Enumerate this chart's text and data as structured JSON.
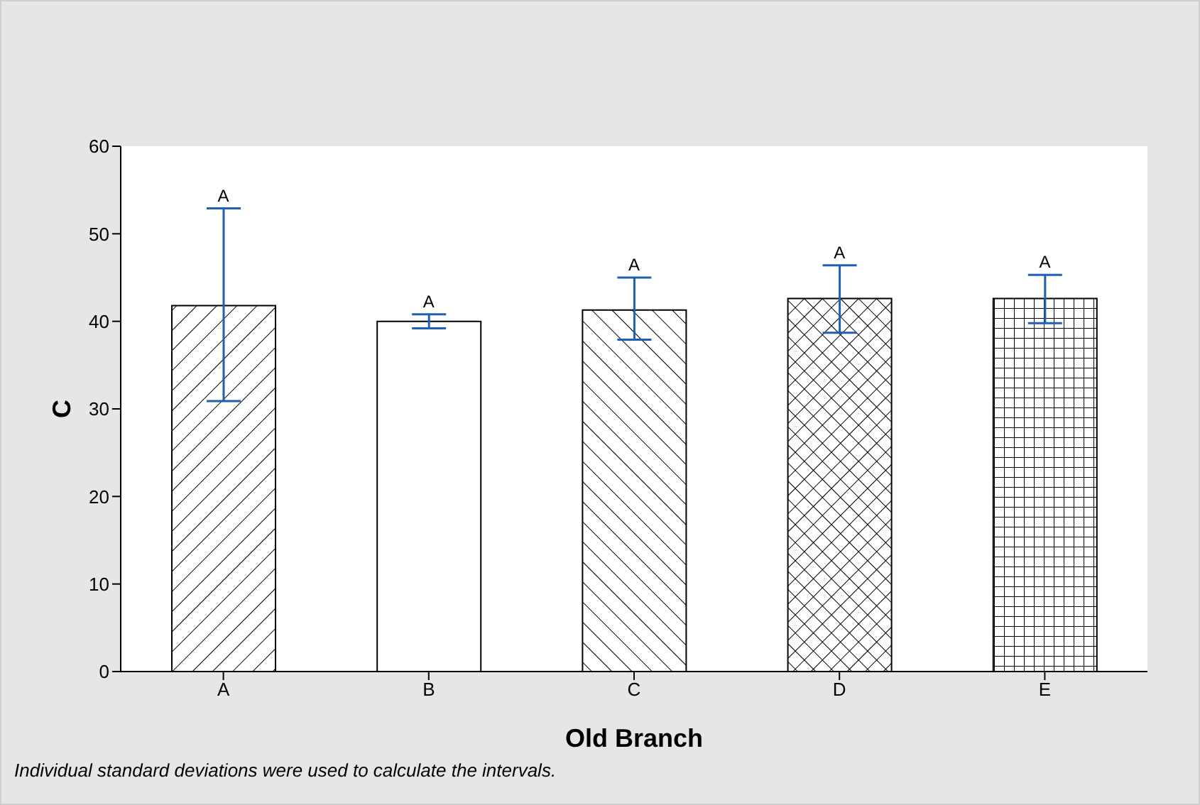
{
  "chart_data": {
    "type": "bar",
    "xlabel": "Old Branch",
    "ylabel": "C",
    "categories": [
      "A",
      "B",
      "C",
      "D",
      "E"
    ],
    "values": [
      41.8,
      40.0,
      41.3,
      42.6,
      42.6
    ],
    "colors": [
      "#000000",
      "#ffffff",
      "#000000",
      "#000000",
      "#000000"
    ],
    "errors": [
      [
        30.9,
        52.9
      ],
      [
        39.2,
        40.8
      ],
      [
        37.9,
        45.0
      ],
      [
        38.7,
        46.4
      ],
      [
        39.8,
        45.3
      ]
    ],
    "ylim": [
      0,
      60
    ],
    "yticks": [
      0,
      10,
      20,
      30,
      40,
      50,
      60
    ],
    "grid": false,
    "legend": false,
    "annotations": [
      {
        "text": "A",
        "x": "A",
        "y": 52.9
      },
      {
        "text": "A",
        "x": "B",
        "y": 40.8
      },
      {
        "text": "A",
        "x": "C",
        "y": 45.0
      },
      {
        "text": "A",
        "x": "D",
        "y": 46.4
      },
      {
        "text": "A",
        "x": "E",
        "y": 45.3
      },
      "Individual standard deviations were used to calculate the intervals."
    ]
  }
}
